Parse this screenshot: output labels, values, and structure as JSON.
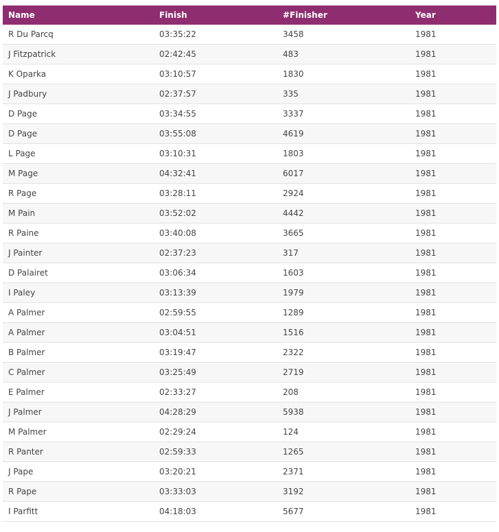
{
  "colors": {
    "header_bg": "#8e2e70",
    "row_alt": "#f7f7f7"
  },
  "columns": [
    "Name",
    "Finish",
    "#Finisher",
    "Year"
  ],
  "rows": [
    [
      "R Du Parcq",
      "03:35:22",
      "3458",
      "1981"
    ],
    [
      "J Fitzpatrick",
      "02:42:45",
      "483",
      "1981"
    ],
    [
      "K Oparka",
      "03:10:57",
      "1830",
      "1981"
    ],
    [
      "J Padbury",
      "02:37:57",
      "335",
      "1981"
    ],
    [
      "D Page",
      "03:34:55",
      "3337",
      "1981"
    ],
    [
      "D Page",
      "03:55:08",
      "4619",
      "1981"
    ],
    [
      "L Page",
      "03:10:31",
      "1803",
      "1981"
    ],
    [
      "M Page",
      "04:32:41",
      "6017",
      "1981"
    ],
    [
      "R Page",
      "03:28:11",
      "2924",
      "1981"
    ],
    [
      "M Pain",
      "03:52:02",
      "4442",
      "1981"
    ],
    [
      "R Paine",
      "03:40:08",
      "3665",
      "1981"
    ],
    [
      "J Painter",
      "02:37:23",
      "317",
      "1981"
    ],
    [
      "D Palairet",
      "03:06:34",
      "1603",
      "1981"
    ],
    [
      "I Paley",
      "03:13:39",
      "1979",
      "1981"
    ],
    [
      "A Palmer",
      "02:59:55",
      "1289",
      "1981"
    ],
    [
      "A Palmer",
      "03:04:51",
      "1516",
      "1981"
    ],
    [
      "B Palmer",
      "03:19:47",
      "2322",
      "1981"
    ],
    [
      "C Palmer",
      "03:25:49",
      "2719",
      "1981"
    ],
    [
      "E Palmer",
      "02:33:27",
      "208",
      "1981"
    ],
    [
      "J Palmer",
      "04:28:29",
      "5938",
      "1981"
    ],
    [
      "M Palmer",
      "02:29:24",
      "124",
      "1981"
    ],
    [
      "R Panter",
      "02:59:33",
      "1265",
      "1981"
    ],
    [
      "J Pape",
      "03:20:21",
      "2371",
      "1981"
    ],
    [
      "R Pape",
      "03:33:03",
      "3192",
      "1981"
    ],
    [
      "I Parfitt",
      "04:18:03",
      "5677",
      "1981"
    ]
  ]
}
